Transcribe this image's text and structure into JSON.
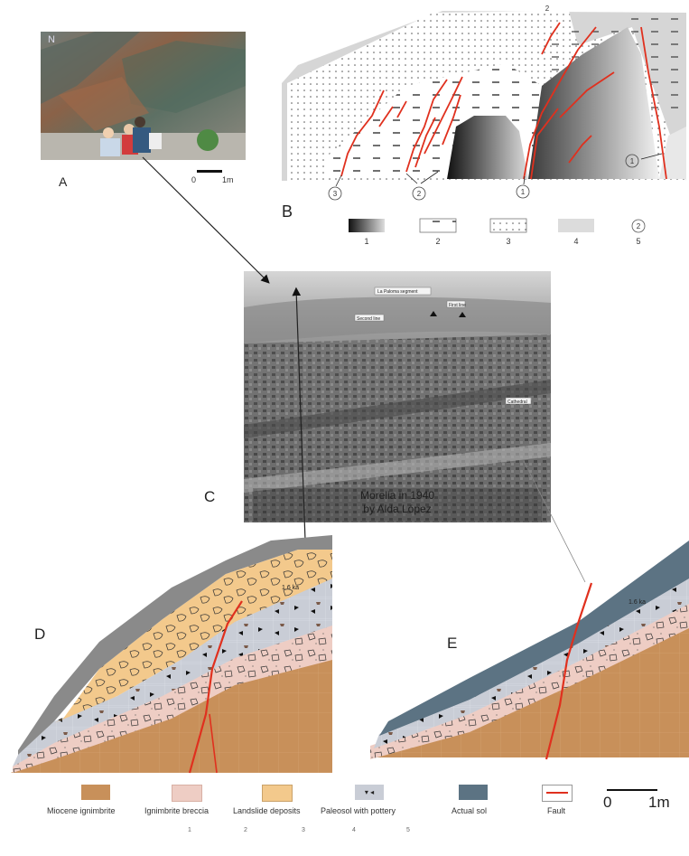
{
  "panels": {
    "a": {
      "letter": "A",
      "scale_zero": "0",
      "scale_unit": "1m",
      "corner_letter": "N"
    },
    "b": {
      "letter": "B",
      "callouts": [
        "3",
        "2",
        "1",
        "1",
        "2"
      ],
      "legend_numbers": [
        "1",
        "2",
        "3",
        "4",
        "5"
      ],
      "legend_circle": "2"
    },
    "c": {
      "letter": "C",
      "caption_line1": "Morelia in 1940",
      "caption_line2": "by Alda López",
      "labels": [
        "La Paloma segment",
        "Second line",
        "First line",
        "Cathedral"
      ]
    },
    "d": {
      "letter": "D",
      "age": "1.6 ka"
    },
    "e": {
      "letter": "E",
      "age": "1.6 ka"
    }
  },
  "legend": {
    "items": [
      {
        "label": "Miocene ignimbrite",
        "color": "#c8905a"
      },
      {
        "label": "Ignimbrite breccia",
        "color": "#eecdc4"
      },
      {
        "label": "Landslide deposits",
        "color": "#f3c98c"
      },
      {
        "label": "Paleosol with pottery",
        "color": "#c9cdd6"
      },
      {
        "label": "Actual sol",
        "color": "#5c7383"
      },
      {
        "label": "Fault",
        "color": "#e0301e"
      }
    ],
    "numbers": [
      "1",
      "2",
      "3",
      "4",
      "5"
    ],
    "scale_zero": "0",
    "scale_unit": "1m"
  }
}
